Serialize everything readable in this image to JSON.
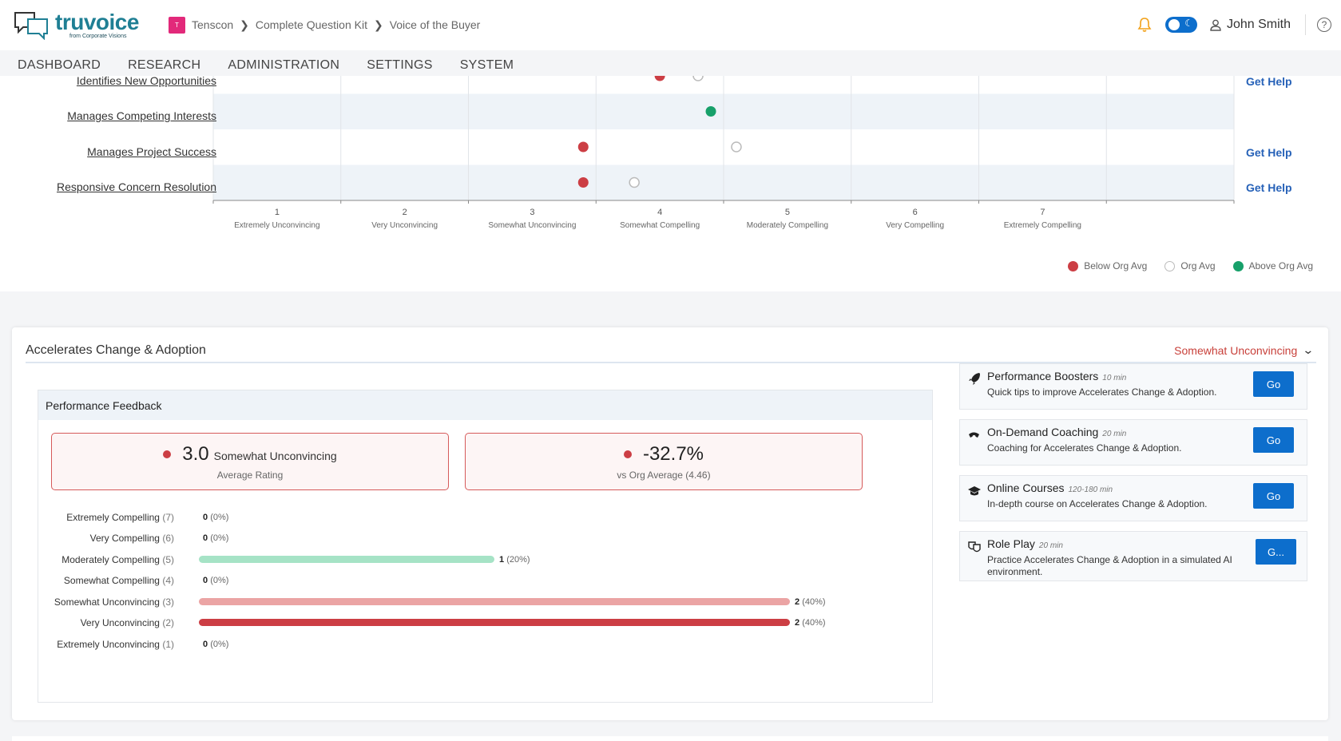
{
  "header": {
    "logo_text": "truvoice",
    "logo_sub": "from Corporate Visions",
    "badge": "T",
    "breadcrumbs": [
      "Tenscon",
      "Complete Question Kit",
      "Voice of the Buyer"
    ],
    "user_name": "John Smith"
  },
  "nav": [
    "DASHBOARD",
    "RESEARCH",
    "ADMINISTRATION",
    "SETTINGS",
    "SYSTEM"
  ],
  "chart_data": {
    "type": "scatter",
    "categories": [
      "Identifies New Opportunities",
      "Manages Competing Interests",
      "Manages Project Success",
      "Responsive Concern Resolution"
    ],
    "series": [
      {
        "name": "Below Org Avg",
        "points": [
          {
            "row": 0,
            "x": 4.0
          },
          {
            "row": 2,
            "x": 3.4
          },
          {
            "row": 3,
            "x": 3.4
          }
        ]
      },
      {
        "name": "Org Avg",
        "points": [
          {
            "row": 0,
            "x": 4.3
          },
          {
            "row": 2,
            "x": 4.6
          },
          {
            "row": 3,
            "x": 3.8
          }
        ]
      },
      {
        "name": "Above Org Avg",
        "points": [
          {
            "row": 1,
            "x": 4.4
          }
        ]
      }
    ],
    "xlim": [
      0.5,
      8.5
    ],
    "x_ticks": [
      1,
      2,
      3,
      4,
      5,
      6,
      7
    ],
    "x_tick_labels": [
      "Extremely Unconvincing",
      "Very Unconvincing",
      "Somewhat Unconvincing",
      "Somewhat Compelling",
      "Moderately Compelling",
      "Very Compelling",
      "Extremely Compelling"
    ],
    "legend_position": "bottom-right",
    "colors": {
      "below": "#cc3e44",
      "above": "#17a06a",
      "org": "#bbbbbb"
    }
  },
  "row_actions": [
    "Get Help",
    "",
    "Get Help",
    "Get Help"
  ],
  "section": {
    "title": "Accelerates Change & Adoption",
    "status": "Somewhat Unconvincing",
    "perf_title": "Performance Feedback",
    "metric1": {
      "value": "3.0",
      "word": "Somewhat Unconvincing",
      "sub": "Average Rating"
    },
    "metric2": {
      "value": "-32.7%",
      "sub": "vs Org Average (4.46)"
    },
    "distribution": [
      {
        "label": "Extremely Compelling",
        "level": "(7)",
        "count": "0",
        "pct": "(0%)",
        "fraction": 0,
        "color": ""
      },
      {
        "label": "Very Compelling",
        "level": "(6)",
        "count": "0",
        "pct": "(0%)",
        "fraction": 0,
        "color": ""
      },
      {
        "label": "Moderately Compelling",
        "level": "(5)",
        "count": "1",
        "pct": "(20%)",
        "fraction": 0.5,
        "color": "#a6e3c6"
      },
      {
        "label": "Somewhat Compelling",
        "level": "(4)",
        "count": "0",
        "pct": "(0%)",
        "fraction": 0,
        "color": ""
      },
      {
        "label": "Somewhat Unconvincing",
        "level": "(3)",
        "count": "2",
        "pct": "(40%)",
        "fraction": 1.0,
        "color": "#eba4a4"
      },
      {
        "label": "Very Unconvincing",
        "level": "(2)",
        "count": "2",
        "pct": "(40%)",
        "fraction": 1.0,
        "color": "#cc3e44"
      },
      {
        "label": "Extremely Unconvincing",
        "level": "(1)",
        "count": "0",
        "pct": "(0%)",
        "fraction": 0,
        "color": ""
      }
    ],
    "resources": [
      {
        "title": "Performance Boosters",
        "time": "10 min",
        "desc": "Quick tips to improve Accelerates Change & Adoption.",
        "button": "Go",
        "icon": "rocket-icon"
      },
      {
        "title": "On-Demand Coaching",
        "time": "20 min",
        "desc": "Coaching for Accelerates Change & Adoption.",
        "button": "Go",
        "icon": "coach-icon"
      },
      {
        "title": "Online Courses",
        "time": "120-180 min",
        "desc": "In-depth course on Accelerates Change & Adoption.",
        "button": "Go",
        "icon": "graduation-cap-icon"
      },
      {
        "title": "Role Play",
        "time": "20 min",
        "desc": "Practice Accelerates Change & Adoption in a simulated AI environment.",
        "button": "G...",
        "icon": "masks-icon"
      }
    ]
  }
}
